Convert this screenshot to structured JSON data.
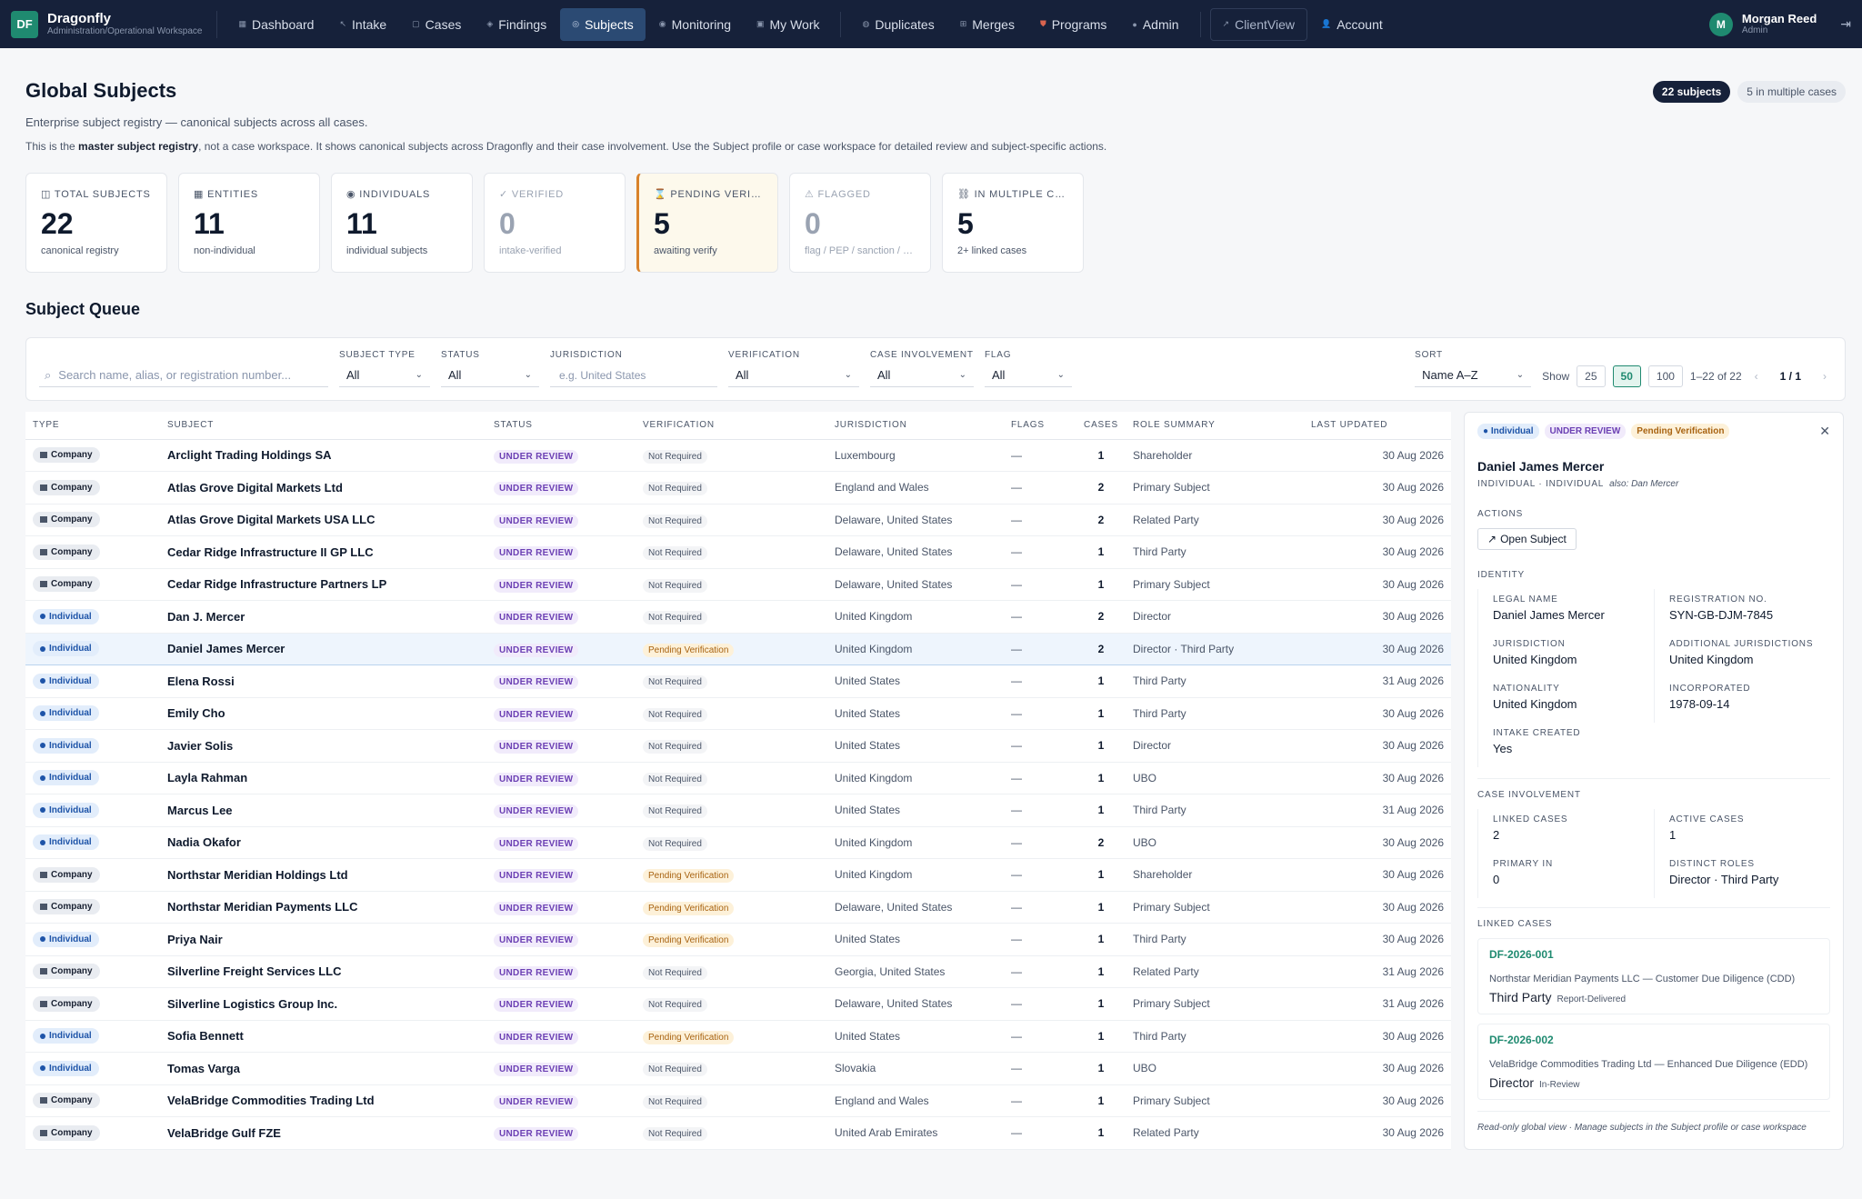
{
  "brand": {
    "logo": "DF",
    "name": "Dragonfly",
    "sub": "Administration/Operational Workspace"
  },
  "nav": {
    "items": [
      {
        "label": "Dashboard",
        "icon": "grid-icon"
      },
      {
        "label": "Intake",
        "icon": "arrow-icon"
      },
      {
        "label": "Cases",
        "icon": "folder-icon"
      },
      {
        "label": "Findings",
        "icon": "diamond-icon"
      },
      {
        "label": "Subjects",
        "icon": "target-icon"
      },
      {
        "label": "Monitoring",
        "icon": "pulse-icon"
      },
      {
        "label": "My Work",
        "icon": "inbox-icon"
      }
    ],
    "items2": [
      {
        "label": "Duplicates",
        "icon": "copy-icon"
      },
      {
        "label": "Merges",
        "icon": "merge-icon"
      },
      {
        "label": "Programs",
        "icon": "shield-icon"
      },
      {
        "label": "Admin",
        "icon": "dot-icon"
      }
    ],
    "clientview": "ClientView",
    "account": "Account"
  },
  "user": {
    "initial": "M",
    "name": "Morgan Reed",
    "role": "Admin"
  },
  "header": {
    "title": "Global Subjects",
    "subtitle": "Enterprise subject registry — canonical subjects across all cases.",
    "notice_pre": "This is the ",
    "notice_bold": "master subject registry",
    "notice_post": ", not a case workspace. It shows canonical subjects across Dragonfly and their case involvement. Use the Subject profile or case workspace for detailed review and subject-specific actions.",
    "pill1": "22 subjects",
    "pill2": "5 in multiple cases"
  },
  "stats": [
    {
      "icon": "◫",
      "label": "TOTAL SUBJECTS",
      "num": "22",
      "desc": "canonical registry"
    },
    {
      "icon": "▦",
      "label": "ENTITIES",
      "num": "11",
      "desc": "non-individual"
    },
    {
      "icon": "◉",
      "label": "INDIVIDUALS",
      "num": "11",
      "desc": "individual subjects"
    },
    {
      "icon": "✓",
      "label": "VERIFIED",
      "num": "0",
      "desc": "intake-verified"
    },
    {
      "icon": "⌛",
      "label": "PENDING VERIFICATION",
      "num": "5",
      "desc": "awaiting verify"
    },
    {
      "icon": "⚠",
      "label": "FLAGGED",
      "num": "0",
      "desc": "flag / PEP / sanction / adverse"
    },
    {
      "icon": "⛓",
      "label": "IN MULTIPLE CASES",
      "num": "5",
      "desc": "2+ linked cases"
    }
  ],
  "queue": {
    "title": "Subject Queue",
    "search_placeholder": "Search name, alias, or registration number...",
    "filters": {
      "subject_type": {
        "label": "SUBJECT TYPE",
        "value": "All"
      },
      "status": {
        "label": "STATUS",
        "value": "All"
      },
      "jurisdiction": {
        "label": "JURISDICTION",
        "placeholder": "e.g. United States"
      },
      "verification": {
        "label": "VERIFICATION",
        "value": "All"
      },
      "involvement": {
        "label": "CASE INVOLVEMENT",
        "value": "All"
      },
      "flag": {
        "label": "FLAG",
        "value": "All"
      },
      "sort": {
        "label": "SORT",
        "value": "Name A–Z"
      }
    },
    "show_label": "Show",
    "show": [
      "25",
      "50",
      "100"
    ],
    "range": "1–22 of 22",
    "page": "1 / 1",
    "prev": "‹",
    "next": "›"
  },
  "table": {
    "headers": [
      "TYPE",
      "SUBJECT",
      "STATUS",
      "VERIFICATION",
      "JURISDICTION",
      "FLAGS",
      "CASES",
      "ROLE SUMMARY",
      "LAST UPDATED"
    ],
    "rows": [
      {
        "type": "Company",
        "subject": "Arclight Trading Holdings SA",
        "status": "UNDER REVIEW",
        "verification": "Not Required",
        "jurisdiction": "Luxembourg",
        "flags": "—",
        "cases": "1",
        "role": "Shareholder",
        "updated": "30 Aug 2026"
      },
      {
        "type": "Company",
        "subject": "Atlas Grove Digital Markets Ltd",
        "status": "UNDER REVIEW",
        "verification": "Not Required",
        "jurisdiction": "England and Wales",
        "flags": "—",
        "cases": "2",
        "role": "Primary Subject",
        "updated": "30 Aug 2026"
      },
      {
        "type": "Company",
        "subject": "Atlas Grove Digital Markets USA LLC",
        "status": "UNDER REVIEW",
        "verification": "Not Required",
        "jurisdiction": "Delaware, United States",
        "flags": "—",
        "cases": "2",
        "role": "Related Party",
        "updated": "30 Aug 2026"
      },
      {
        "type": "Company",
        "subject": "Cedar Ridge Infrastructure II GP LLC",
        "status": "UNDER REVIEW",
        "verification": "Not Required",
        "jurisdiction": "Delaware, United States",
        "flags": "—",
        "cases": "1",
        "role": "Third Party",
        "updated": "30 Aug 2026"
      },
      {
        "type": "Company",
        "subject": "Cedar Ridge Infrastructure Partners LP",
        "status": "UNDER REVIEW",
        "verification": "Not Required",
        "jurisdiction": "Delaware, United States",
        "flags": "—",
        "cases": "1",
        "role": "Primary Subject",
        "updated": "30 Aug 2026"
      },
      {
        "type": "Individual",
        "subject": "Dan J. Mercer",
        "status": "UNDER REVIEW",
        "verification": "Not Required",
        "jurisdiction": "United Kingdom",
        "flags": "—",
        "cases": "2",
        "role": "Director",
        "updated": "30 Aug 2026"
      },
      {
        "type": "Individual",
        "subject": "Daniel James Mercer",
        "status": "UNDER REVIEW",
        "verification": "Pending Verification",
        "jurisdiction": "United Kingdom",
        "flags": "—",
        "cases": "2",
        "role": "Director · Third Party",
        "updated": "30 Aug 2026"
      },
      {
        "type": "Individual",
        "subject": "Elena Rossi",
        "status": "UNDER REVIEW",
        "verification": "Not Required",
        "jurisdiction": "United States",
        "flags": "—",
        "cases": "1",
        "role": "Third Party",
        "updated": "31 Aug 2026"
      },
      {
        "type": "Individual",
        "subject": "Emily Cho",
        "status": "UNDER REVIEW",
        "verification": "Not Required",
        "jurisdiction": "United States",
        "flags": "—",
        "cases": "1",
        "role": "Third Party",
        "updated": "30 Aug 2026"
      },
      {
        "type": "Individual",
        "subject": "Javier Solis",
        "status": "UNDER REVIEW",
        "verification": "Not Required",
        "jurisdiction": "United States",
        "flags": "—",
        "cases": "1",
        "role": "Director",
        "updated": "30 Aug 2026"
      },
      {
        "type": "Individual",
        "subject": "Layla Rahman",
        "status": "UNDER REVIEW",
        "verification": "Not Required",
        "jurisdiction": "United Kingdom",
        "flags": "—",
        "cases": "1",
        "role": "UBO",
        "updated": "30 Aug 2026"
      },
      {
        "type": "Individual",
        "subject": "Marcus Lee",
        "status": "UNDER REVIEW",
        "verification": "Not Required",
        "jurisdiction": "United States",
        "flags": "—",
        "cases": "1",
        "role": "Third Party",
        "updated": "31 Aug 2026"
      },
      {
        "type": "Individual",
        "subject": "Nadia Okafor",
        "status": "UNDER REVIEW",
        "verification": "Not Required",
        "jurisdiction": "United Kingdom",
        "flags": "—",
        "cases": "2",
        "role": "UBO",
        "updated": "30 Aug 2026"
      },
      {
        "type": "Company",
        "subject": "Northstar Meridian Holdings Ltd",
        "status": "UNDER REVIEW",
        "verification": "Pending Verification",
        "jurisdiction": "United Kingdom",
        "flags": "—",
        "cases": "1",
        "role": "Shareholder",
        "updated": "30 Aug 2026"
      },
      {
        "type": "Company",
        "subject": "Northstar Meridian Payments LLC",
        "status": "UNDER REVIEW",
        "verification": "Pending Verification",
        "jurisdiction": "Delaware, United States",
        "flags": "—",
        "cases": "1",
        "role": "Primary Subject",
        "updated": "30 Aug 2026"
      },
      {
        "type": "Individual",
        "subject": "Priya Nair",
        "status": "UNDER REVIEW",
        "verification": "Pending Verification",
        "jurisdiction": "United States",
        "flags": "—",
        "cases": "1",
        "role": "Third Party",
        "updated": "30 Aug 2026"
      },
      {
        "type": "Company",
        "subject": "Silverline Freight Services LLC",
        "status": "UNDER REVIEW",
        "verification": "Not Required",
        "jurisdiction": "Georgia, United States",
        "flags": "—",
        "cases": "1",
        "role": "Related Party",
        "updated": "31 Aug 2026"
      },
      {
        "type": "Company",
        "subject": "Silverline Logistics Group Inc.",
        "status": "UNDER REVIEW",
        "verification": "Not Required",
        "jurisdiction": "Delaware, United States",
        "flags": "—",
        "cases": "1",
        "role": "Primary Subject",
        "updated": "31 Aug 2026"
      },
      {
        "type": "Individual",
        "subject": "Sofia Bennett",
        "status": "UNDER REVIEW",
        "verification": "Pending Verification",
        "jurisdiction": "United States",
        "flags": "—",
        "cases": "1",
        "role": "Third Party",
        "updated": "30 Aug 2026"
      },
      {
        "type": "Individual",
        "subject": "Tomas Varga",
        "status": "UNDER REVIEW",
        "verification": "Not Required",
        "jurisdiction": "Slovakia",
        "flags": "—",
        "cases": "1",
        "role": "UBO",
        "updated": "30 Aug 2026"
      },
      {
        "type": "Company",
        "subject": "VelaBridge Commodities Trading Ltd",
        "status": "UNDER REVIEW",
        "verification": "Not Required",
        "jurisdiction": "England and Wales",
        "flags": "—",
        "cases": "1",
        "role": "Primary Subject",
        "updated": "30 Aug 2026"
      },
      {
        "type": "Company",
        "subject": "VelaBridge Gulf FZE",
        "status": "UNDER REVIEW",
        "verification": "Not Required",
        "jurisdiction": "United Arab Emirates",
        "flags": "—",
        "cases": "1",
        "role": "Related Party",
        "updated": "30 Aug 2026"
      }
    ]
  },
  "panel": {
    "tags": [
      "Individual",
      "UNDER REVIEW",
      "Pending Verification"
    ],
    "close": "✕",
    "name": "Daniel James Mercer",
    "meta": "INDIVIDUAL · INDIVIDUAL",
    "alias": "also: Dan Mercer",
    "actions_label": "ACTIONS",
    "open_button": "Open Subject",
    "identity_label": "IDENTITY",
    "identity": [
      {
        "k": "LEGAL NAME",
        "v": "Daniel James Mercer"
      },
      {
        "k": "REGISTRATION NO.",
        "v": "SYN-GB-DJM-7845"
      },
      {
        "k": "JURISDICTION",
        "v": "United Kingdom"
      },
      {
        "k": "ADDITIONAL JURISDICTIONS",
        "v": "United Kingdom"
      },
      {
        "k": "NATIONALITY",
        "v": "United Kingdom"
      },
      {
        "k": "INCORPORATED",
        "v": "1978-09-14"
      },
      {
        "k": "INTAKE CREATED",
        "v": "Yes"
      }
    ],
    "involvement_label": "CASE INVOLVEMENT",
    "involvement": [
      {
        "k": "LINKED CASES",
        "v": "2"
      },
      {
        "k": "ACTIVE CASES",
        "v": "1"
      },
      {
        "k": "PRIMARY IN",
        "v": "0"
      },
      {
        "k": "DISTINCT ROLES",
        "v": "Director · Third Party"
      }
    ],
    "linked_label": "LINKED CASES",
    "linked": [
      {
        "id": "DF-2026-001",
        "desc": "Northstar Meridian Payments LLC — Customer Due Diligence (CDD)",
        "role": "Third Party",
        "state": "Report-Delivered"
      },
      {
        "id": "DF-2026-002",
        "desc": "VelaBridge Commodities Trading Ltd — Enhanced Due Diligence (EDD)",
        "role": "Director",
        "state": "In-Review"
      }
    ],
    "footer": "Read-only global view · Manage subjects in the Subject profile or case workspace"
  },
  "colors": {
    "accent": "#1f8a70",
    "nav_bg": "#16213a",
    "active_nav": "#2b4a73",
    "pending": "#a86311",
    "review": "#6b3fb3"
  }
}
